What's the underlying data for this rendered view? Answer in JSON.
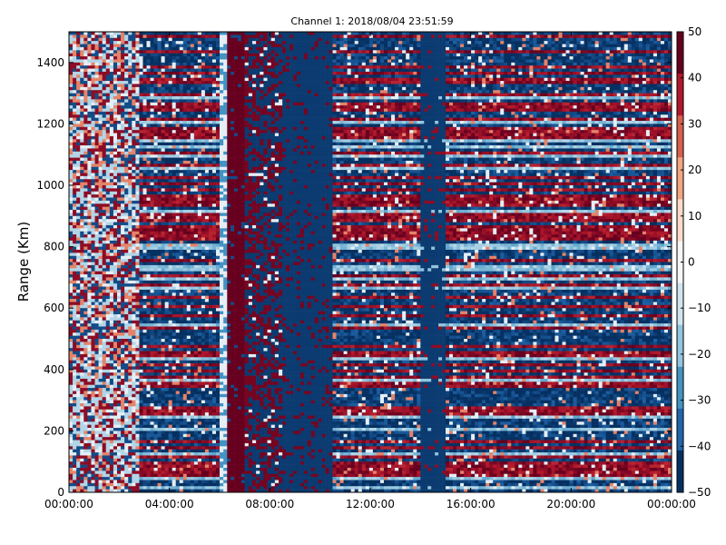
{
  "chart_data": {
    "type": "heatmap",
    "title": "Channel 1: 2018/08/04 23:51:59",
    "xlabel": "",
    "ylabel": "Range (Km)",
    "x_ticks": [
      "00:00:00",
      "04:00:00",
      "08:00:00",
      "12:00:00",
      "16:00:00",
      "20:00:00",
      "00:00:00"
    ],
    "x_tick_hours": [
      0,
      4,
      8,
      12,
      16,
      20,
      24
    ],
    "xlim_hours": [
      0,
      24
    ],
    "y_ticks": [
      0,
      200,
      400,
      600,
      800,
      1000,
      1200,
      1400
    ],
    "ylim": [
      0,
      1500
    ],
    "colorbar": {
      "ticks": [
        50,
        40,
        30,
        20,
        10,
        0,
        -10,
        -20,
        -30,
        -40,
        -50
      ],
      "range": [
        -50,
        50
      ],
      "colormap": "RdBu_r",
      "colors": [
        "#053061",
        "#2166ac",
        "#4393c3",
        "#92c5de",
        "#d1e5f0",
        "#f7f7f7",
        "#fddbc7",
        "#f4a582",
        "#d6604d",
        "#b2182b",
        "#67001f"
      ]
    },
    "regions": [
      {
        "hours": [
          0,
          2.8
        ],
        "pattern": "mixed-light-blue-red",
        "mean_value": -15
      },
      {
        "hours": [
          2.8,
          6.0
        ],
        "pattern": "blue-with-red-stripes",
        "mean_value": -35
      },
      {
        "hours": [
          6.0,
          6.3
        ],
        "pattern": "light-stripe",
        "mean_value": -5
      },
      {
        "hours": [
          6.3,
          7.0
        ],
        "pattern": "dark-red-band",
        "mean_value": 50
      },
      {
        "hours": [
          7.0,
          8.5
        ],
        "pattern": "red-speckle-on-blue",
        "mean_value": 10
      },
      {
        "hours": [
          8.5,
          10.5
        ],
        "pattern": "mostly-blue-with-speckles",
        "mean_value": -40
      },
      {
        "hours": [
          10.5,
          14.0
        ],
        "pattern": "blue-with-red-stripes",
        "mean_value": -10
      },
      {
        "hours": [
          14.0,
          15.0
        ],
        "pattern": "blue-gap",
        "mean_value": -45
      },
      {
        "hours": [
          15.0,
          24.0
        ],
        "pattern": "blue-with-red-stripes",
        "mean_value": -10
      }
    ]
  }
}
